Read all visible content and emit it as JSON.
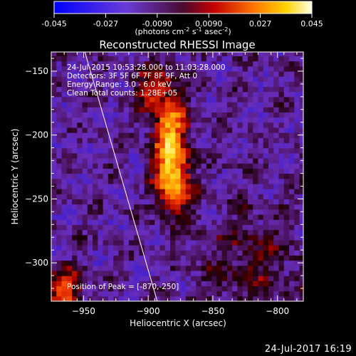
{
  "colorbar": {
    "ticks": [
      "-0.045",
      "-0.027",
      "-0.0090",
      "0.0090",
      "0.027",
      "0.045"
    ],
    "units_prefix": "(photons cm",
    "units_sup1": "-2",
    "units_mid": " s",
    "units_sup2": "-1",
    "units_end": " asec",
    "units_sup3": "-2",
    "units_close": ")",
    "min": -0.045,
    "max": 0.045
  },
  "chart_data": {
    "type": "heatmap",
    "title": "Reconstructed RHESSI Image",
    "xlabel": "Heliocentric X (arcsec)",
    "ylabel": "Heliocentric Y (arcsec)",
    "xlim": [
      -975,
      -780
    ],
    "ylim": [
      -330,
      -135
    ],
    "xticks": [
      -950,
      -900,
      -850,
      -800
    ],
    "yticks": [
      -150,
      -200,
      -250,
      -300
    ],
    "annotations": [
      "24-Jul-2015 10:53:28.000 to 11:03:28.000",
      "Detectors: 3F 5F 6F 7F 8F 9F, Att 0",
      "Energy Range: 3.0 - 6.0 keV",
      "Clean    Total counts: 1.28E+05"
    ],
    "peak_label": "Position of Peak = [-870,-250]",
    "peak": [
      -870,
      -250
    ],
    "limb_line": [
      [
        -949,
        -135
      ],
      [
        -893,
        -330
      ]
    ],
    "sources": [
      {
        "x": -883,
        "y": -205,
        "sx": 9,
        "sy": 30,
        "amp": 0.045
      },
      {
        "x": -878,
        "y": -240,
        "sx": 8,
        "sy": 14,
        "amp": 0.03
      },
      {
        "x": -900,
        "y": -165,
        "sx": 8,
        "sy": 12,
        "amp": 0.022
      },
      {
        "x": -965,
        "y": -322,
        "sx": 10,
        "sy": 12,
        "amp": 0.03
      },
      {
        "x": -820,
        "y": -300,
        "sx": 25,
        "sy": 30,
        "amp": 0.012
      }
    ],
    "background": -0.013,
    "noise": 0.008
  },
  "footer": {
    "timestamp": "24-Jul-2017 16:19"
  },
  "colors": {
    "background": "#000000",
    "axis": "#ffffff"
  }
}
